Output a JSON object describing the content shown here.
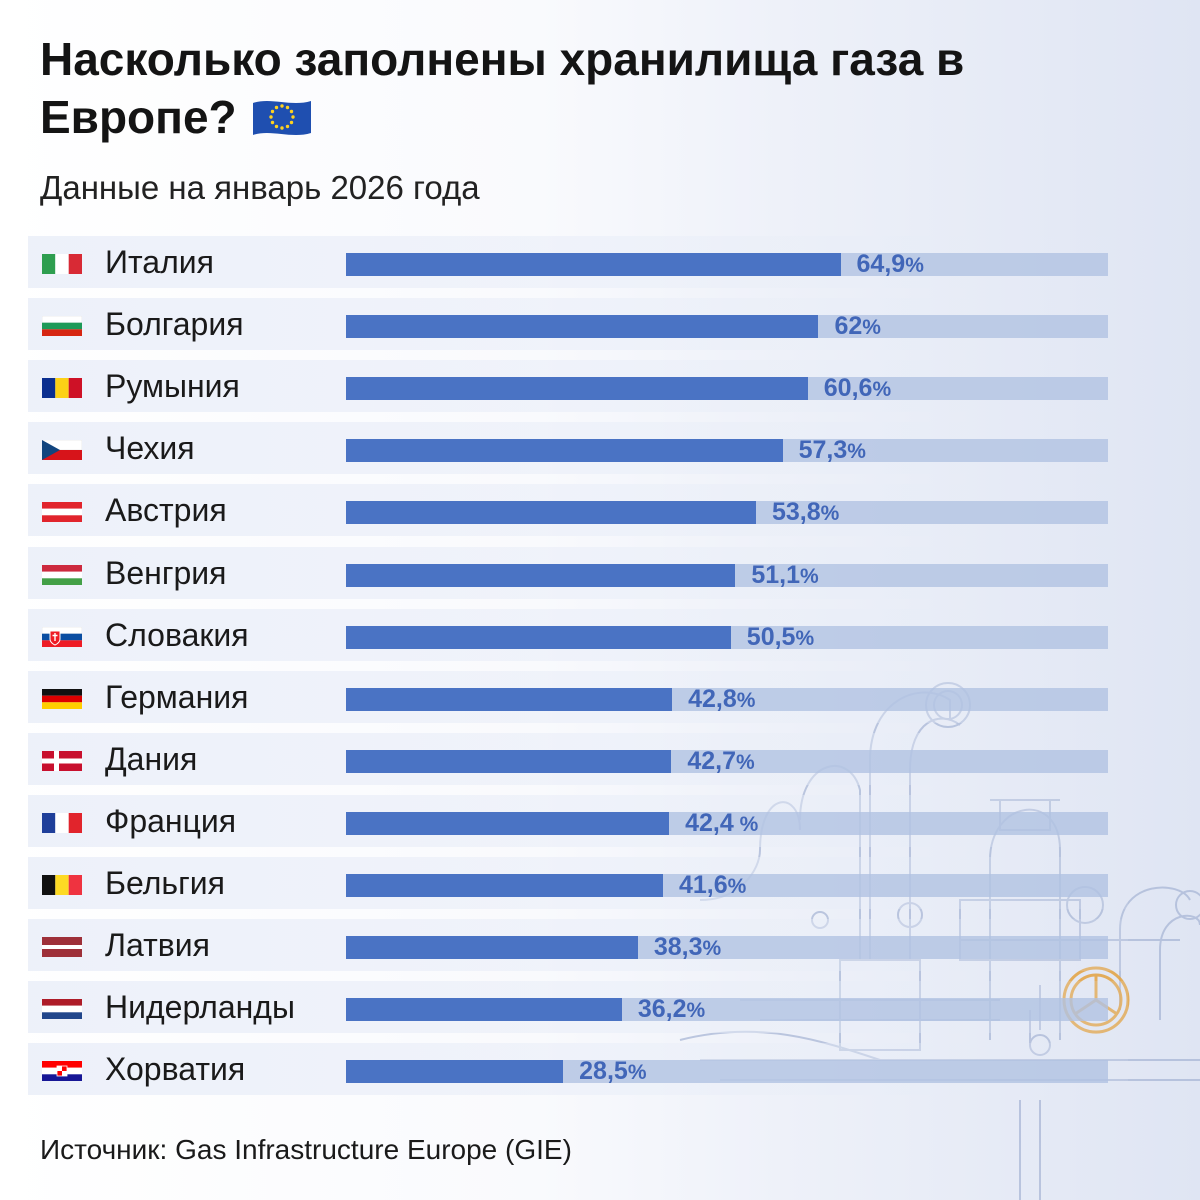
{
  "title": "Насколько заполнены хранилища газа в Европе?",
  "subtitle": "Данные на январь 2026 года",
  "source": "Источник: Gas Infrastructure Europe (GIE)",
  "colors": {
    "bar": "#4a73c4",
    "track": "#b0c1e2",
    "value_text": "#4166b8",
    "accent_valve": "#e3a64a"
  },
  "chart_data": {
    "type": "bar",
    "orientation": "horizontal",
    "title": "Насколько заполнены хранилища газа в Европе?",
    "subtitle": "Данные на январь 2026 года",
    "xlabel": "",
    "ylabel": "",
    "xlim": [
      0,
      100
    ],
    "unit": "%",
    "categories": [
      "Италия",
      "Болгария",
      "Румыния",
      "Чехия",
      "Австрия",
      "Венгрия",
      "Словакия",
      "Германия",
      "Дания",
      "Франция",
      "Бельгия",
      "Латвия",
      "Нидерланды",
      "Хорватия"
    ],
    "values": [
      64.9,
      62,
      60.6,
      57.3,
      53.8,
      51.1,
      50.5,
      42.8,
      42.7,
      42.4,
      41.6,
      38.3,
      36.2,
      28.5
    ],
    "value_labels": [
      "64,9",
      "62",
      "60,6",
      "57,3",
      "53,8",
      "51,1",
      "50,5",
      "42,8",
      "42,7",
      "42,4",
      "41,6",
      "38,3",
      "36,2",
      "28,5"
    ],
    "value_suffix": [
      "%",
      "%",
      "%",
      "%",
      "%",
      "%",
      "%",
      "%",
      "%",
      " %",
      "%",
      "%",
      "%",
      "%"
    ],
    "flags": [
      "italy-flag",
      "bulgaria-flag",
      "romania-flag",
      "czechia-flag",
      "austria-flag",
      "hungary-flag",
      "slovakia-flag",
      "germany-flag",
      "denmark-flag",
      "france-flag",
      "belgium-flag",
      "latvia-flag",
      "netherlands-flag",
      "croatia-flag"
    ],
    "source": "Источник: Gas Infrastructure Europe (GIE)"
  }
}
